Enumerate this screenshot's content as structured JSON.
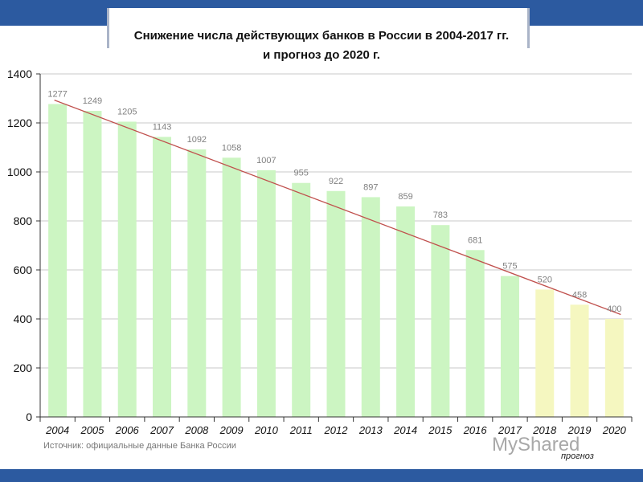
{
  "chart_data": {
    "type": "bar",
    "title": "Снижение числа действующих банков в России в 2004-2017 гг.",
    "subtitle": "и прогноз до 2020 г.",
    "categories": [
      "2004",
      "2005",
      "2006",
      "2007",
      "2008",
      "2009",
      "2010",
      "2011",
      "2012",
      "2013",
      "2014",
      "2015",
      "2016",
      "2017",
      "2018",
      "2019",
      "2020"
    ],
    "values": [
      1277,
      1249,
      1205,
      1143,
      1092,
      1058,
      1007,
      955,
      922,
      897,
      859,
      783,
      681,
      575,
      520,
      458,
      400
    ],
    "forecast_from": "2018",
    "forecast_label": "прогноз",
    "trendline": {
      "from": [
        "2004",
        1293
      ],
      "to": [
        "2020",
        418
      ]
    },
    "ylim": [
      0,
      1400
    ],
    "yticks": [
      0,
      200,
      400,
      600,
      800,
      1000,
      1200,
      1400
    ],
    "grid": true,
    "xlabel": "",
    "ylabel": "",
    "colors": {
      "bar": "#ccf5c2",
      "forecast_bar": "#f5f7c0",
      "trend": "#c0504d",
      "grid": "#c8c8c8",
      "axis": "#333333"
    },
    "source": "Источник: официальные данные Банка России"
  },
  "watermark": "MyShared"
}
